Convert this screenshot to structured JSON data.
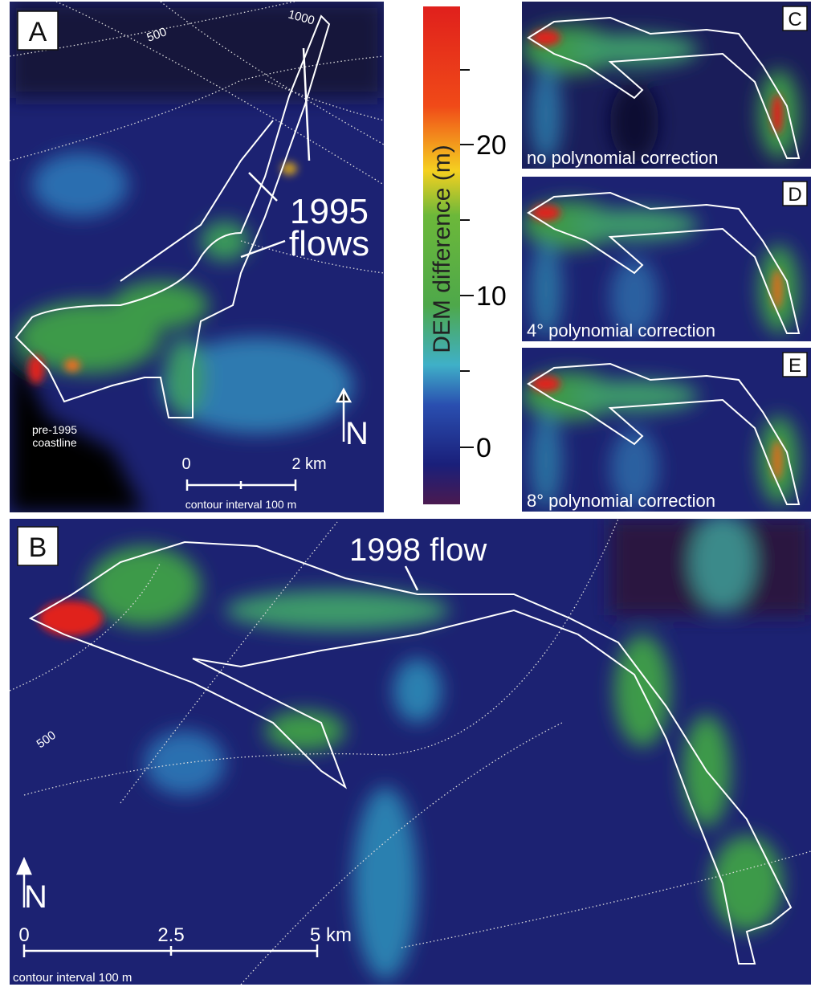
{
  "panel_a": {
    "label": "A",
    "contours": [
      "1000",
      "500"
    ],
    "flows_label": [
      "1995",
      "flows"
    ],
    "coastline_label": [
      "pre-1995",
      "coastline"
    ],
    "scale": [
      "0",
      "2 km"
    ],
    "contour_interval": "contour interval 100 m",
    "north": "N"
  },
  "colorbar": {
    "title": "DEM difference (m)",
    "ticks": [
      "0",
      "10",
      "20"
    ]
  },
  "panels_cde": [
    {
      "label": "C",
      "caption": "no polynomial correction"
    },
    {
      "label": "D",
      "caption": "4° polynomial correction"
    },
    {
      "label": "E",
      "caption": "8° polynomial correction"
    }
  ],
  "panel_b": {
    "label": "B",
    "flow_label": "1998 flow",
    "contour": "500",
    "scale": [
      "0",
      "2.5",
      "5 km"
    ],
    "contour_interval": "contour interval 100 m",
    "north": "N"
  }
}
